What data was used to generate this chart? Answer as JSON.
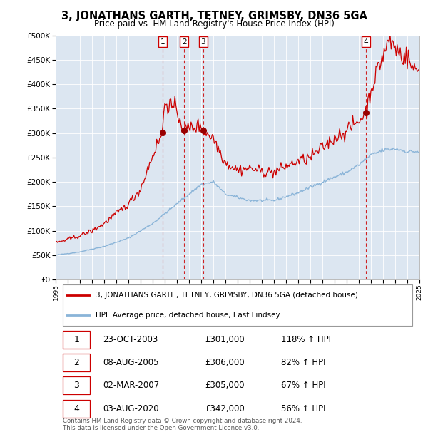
{
  "title": "3, JONATHANS GARTH, TETNEY, GRIMSBY, DN36 5GA",
  "subtitle": "Price paid vs. HM Land Registry's House Price Index (HPI)",
  "plot_bg_color": "#dce6f1",
  "ylim": [
    0,
    500000
  ],
  "yticks": [
    0,
    50000,
    100000,
    150000,
    200000,
    250000,
    300000,
    350000,
    400000,
    450000,
    500000
  ],
  "legend_line1": "3, JONATHANS GARTH, TETNEY, GRIMSBY, DN36 5GA (detached house)",
  "legend_line2": "HPI: Average price, detached house, East Lindsey",
  "footer": "Contains HM Land Registry data © Crown copyright and database right 2024.\nThis data is licensed under the Open Government Licence v3.0.",
  "sales": [
    {
      "num": 1,
      "date": "23-OCT-2003",
      "price": 301000,
      "pct": "118%",
      "dir": "↑",
      "x_year": 2003.81
    },
    {
      "num": 2,
      "date": "08-AUG-2005",
      "price": 306000,
      "pct": "82%",
      "dir": "↑",
      "x_year": 2005.6
    },
    {
      "num": 3,
      "date": "02-MAR-2007",
      "price": 305000,
      "pct": "67%",
      "dir": "↑",
      "x_year": 2007.17
    },
    {
      "num": 4,
      "date": "03-AUG-2020",
      "price": 342000,
      "pct": "56%",
      "dir": "↑",
      "x_year": 2020.59
    }
  ],
  "hpi_color": "#8ab4d8",
  "price_color": "#cc0000",
  "sale_marker_color": "#990000",
  "dashed_line_color": "#cc0000",
  "xlim_start": 1995,
  "xlim_end": 2025,
  "xtick_years": [
    1995,
    1996,
    1997,
    1998,
    1999,
    2000,
    2001,
    2002,
    2003,
    2004,
    2005,
    2006,
    2007,
    2008,
    2009,
    2010,
    2011,
    2012,
    2013,
    2014,
    2015,
    2016,
    2017,
    2018,
    2019,
    2020,
    2021,
    2022,
    2023,
    2024,
    2025
  ]
}
